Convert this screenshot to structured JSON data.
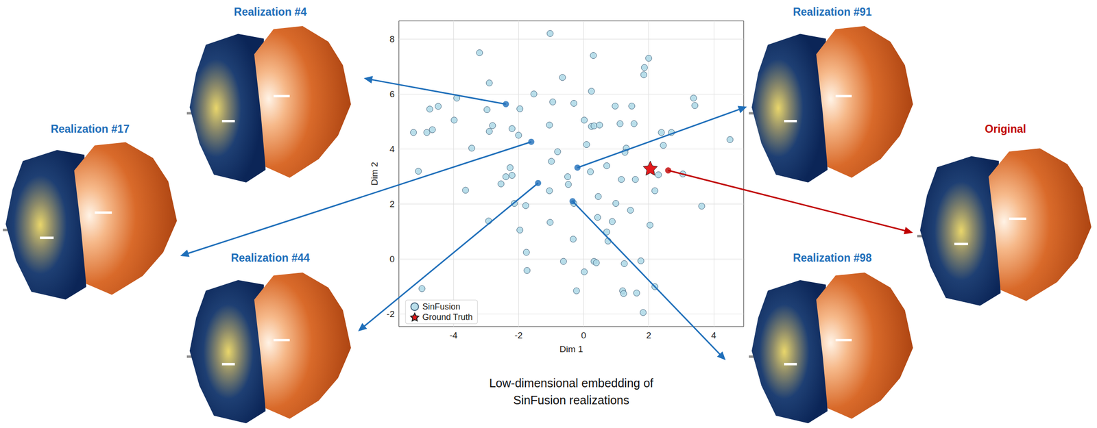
{
  "chart_data": {
    "type": "scatter",
    "x_label": "Dim 1",
    "y_label": "Dim 2",
    "caption": "Low-dimensional embedding of SinFusion realizations",
    "xlim": [
      -5.68,
      4.92
    ],
    "ylim": [
      -2.46,
      8.66
    ],
    "xticks": [
      -4,
      -2,
      0,
      2,
      4
    ],
    "yticks": [
      -2,
      0,
      2,
      4,
      6,
      8
    ],
    "grid": true,
    "legend": "lower left",
    "series": [
      {
        "name": "SinFusion",
        "color": "#add8e6",
        "marker": "circle",
        "x": [
          -1.03,
          -3.2,
          0.3,
          2.0,
          1.87,
          1.85,
          -0.65,
          -2.9,
          0.24,
          -1.53,
          -3.9,
          3.38,
          3.42,
          -4.73,
          -4.47,
          -2.97,
          -1.96,
          -0.95,
          -0.3,
          0.97,
          1.48,
          -5.23,
          -4.82,
          -4.65,
          -3.98,
          -2.9,
          -2.8,
          -2.2,
          -2.0,
          -1.05,
          0.02,
          0.24,
          0.32,
          0.49,
          1.12,
          1.55,
          2.39,
          2.7,
          4.5,
          0.09,
          -3.44,
          -0.8,
          2.45,
          1.31,
          1.27,
          -0.99,
          0.21,
          0.71,
          -2.26,
          -2.2,
          -2.39,
          -2.54,
          1.16,
          1.59,
          3.05,
          2.3,
          2.19,
          -0.49,
          -0.47,
          -3.63,
          -2.13,
          -1.78,
          -1.05,
          -0.3,
          0.45,
          0.99,
          3.63,
          1.44,
          0.43,
          0.88,
          0.71,
          0.75,
          -2.92,
          -1.03,
          2.04,
          -1.96,
          -1.76,
          -1.74,
          -0.32,
          -0.62,
          0.32,
          0.39,
          0.02,
          1.25,
          1.76,
          2.19,
          -0.22,
          1.2,
          1.23,
          1.63,
          1.83,
          -4.97,
          -5.08
        ],
        "y": [
          8.2,
          7.5,
          7.4,
          7.3,
          6.96,
          6.7,
          6.6,
          6.4,
          6.1,
          6.0,
          5.85,
          5.85,
          5.58,
          5.45,
          5.55,
          5.43,
          5.46,
          5.71,
          5.66,
          5.56,
          5.56,
          4.6,
          4.6,
          4.7,
          5.05,
          4.64,
          4.85,
          4.74,
          4.5,
          4.87,
          5.05,
          4.82,
          4.84,
          4.87,
          4.92,
          4.92,
          4.6,
          4.6,
          4.34,
          4.16,
          4.03,
          3.9,
          4.13,
          4.03,
          3.88,
          3.55,
          3.17,
          3.39,
          3.32,
          3.04,
          2.99,
          2.73,
          2.89,
          2.89,
          3.09,
          3.06,
          2.48,
          2.99,
          2.71,
          2.5,
          2.02,
          1.94,
          2.48,
          2.02,
          2.27,
          2.02,
          1.92,
          1.77,
          1.51,
          1.36,
          0.98,
          0.65,
          1.38,
          1.33,
          1.23,
          1.05,
          0.24,
          -0.42,
          0.72,
          -0.09,
          -0.09,
          -0.14,
          -0.47,
          -0.17,
          -0.07,
          -1.01,
          -1.16,
          -1.16,
          -1.26,
          -1.24,
          -1.95,
          -1.08,
          3.19
        ]
      },
      {
        "name": "Ground Truth",
        "color": "#e41a1c",
        "marker": "star",
        "x": [
          2.05
        ],
        "y": [
          3.3
        ]
      }
    ],
    "annotations": [
      {
        "label": "Realization #4",
        "x": -2.39,
        "y": 5.63,
        "color": "#1f6fba"
      },
      {
        "label": "Realization #17",
        "x": -1.61,
        "y": 4.26,
        "color": "#1f6fba"
      },
      {
        "label": "Realization #44",
        "x": -1.4,
        "y": 2.76,
        "color": "#1f6fba"
      },
      {
        "label": "Realization #91",
        "x": -0.19,
        "y": 3.32,
        "color": "#1f6fba"
      },
      {
        "label": "Realization #98",
        "x": -0.34,
        "y": 2.1,
        "color": "#1f6fba"
      },
      {
        "label": "Original",
        "x": 2.6,
        "y": 3.22,
        "color": "#c00000"
      }
    ]
  }
}
